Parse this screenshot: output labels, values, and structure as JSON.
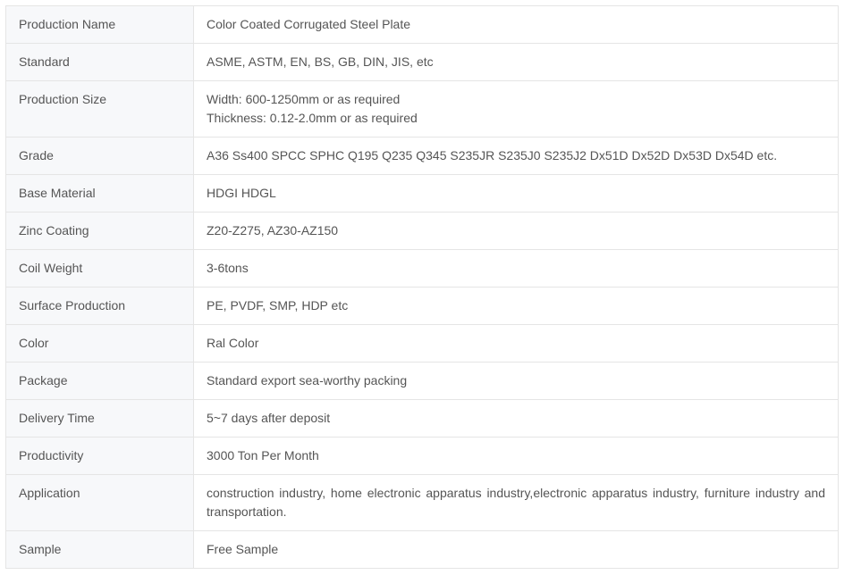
{
  "table": {
    "label_bg": "#f7f8fa",
    "value_bg": "#ffffff",
    "border_color": "#e5e5e5",
    "text_color": "#555555",
    "font_size": 14,
    "label_col_width": 210,
    "rows": [
      {
        "label": "Production Name",
        "value": "Color Coated Corrugated Steel Plate"
      },
      {
        "label": "Standard",
        "value": "ASME, ASTM, EN, BS, GB, DIN, JIS, etc"
      },
      {
        "label": "Production Size",
        "value": "Width: 600-1250mm or as required\nThickness: 0.12-2.0mm or as required"
      },
      {
        "label": "Grade",
        "value": "A36 Ss400 SPCC SPHC Q195 Q235 Q345 S235JR S235J0 S235J2 Dx51D Dx52D  Dx53D  Dx54D etc."
      },
      {
        "label": "Base Material",
        "value": "HDGI HDGL"
      },
      {
        "label": "Zinc Coating",
        "value": "Z20-Z275, AZ30-AZ150"
      },
      {
        "label": "Coil Weight",
        "value": "3-6tons"
      },
      {
        "label": "Surface Production",
        "value": "PE, PVDF, SMP, HDP etc"
      },
      {
        "label": "Color",
        "value": "Ral Color"
      },
      {
        "label": "Package",
        "value": "Standard export sea-worthy packing"
      },
      {
        "label": "Delivery Time",
        "value": "5~7 days after deposit"
      },
      {
        "label": "Productivity",
        "value": "3000 Ton Per Month"
      },
      {
        "label": "Application",
        "value": "construction industry, home electronic apparatus industry,electronic apparatus industry, furniture industry and transportation."
      },
      {
        "label": "Sample",
        "value": "Free Sample"
      }
    ]
  }
}
